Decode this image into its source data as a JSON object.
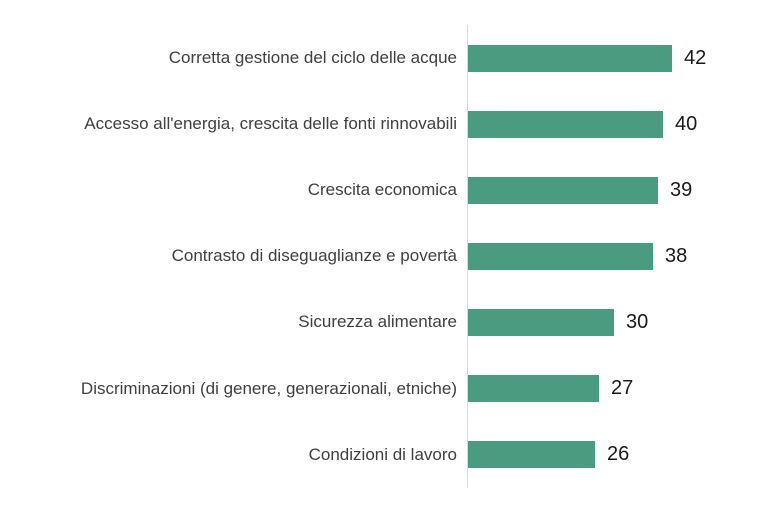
{
  "chart_data": {
    "type": "bar",
    "orientation": "horizontal",
    "title": "",
    "subtitle": "",
    "xlabel": "",
    "ylabel": "",
    "xlim": [
      0,
      45
    ],
    "grid": false,
    "legend": false,
    "data_labels": true,
    "categories": [
      "Corretta gestione del ciclo delle acque",
      "Accesso all'energia, crescita delle fonti rinnovabili",
      "Crescita economica",
      "Contrasto di diseguaglianze e povertà",
      "Sicurezza alimentare",
      "Discriminazioni (di genere, generazionali, etniche)",
      "Condizioni di lavoro"
    ],
    "values": [
      42,
      40,
      39,
      38,
      30,
      27,
      26
    ],
    "colors": {
      "bar": "#4a9b80",
      "axis_line": "#d9d9d9",
      "category_label": "#404040",
      "value_label": "#1a1a1a",
      "background": "#ffffff"
    }
  }
}
